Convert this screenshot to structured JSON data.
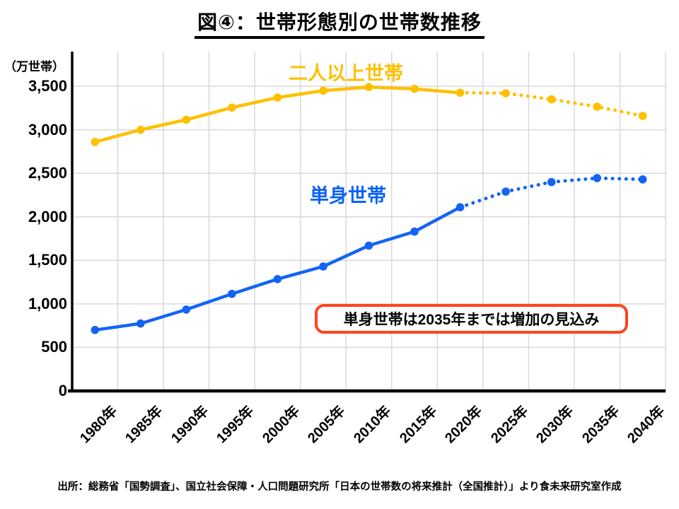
{
  "title": "図④：世帯形態別の世帯数推移",
  "unit_label": "（万世帯）",
  "annotation": {
    "text": "単身世帯は2035年までは増加の見込み",
    "border_color": "#FF4420"
  },
  "source": "出所：総務省「国勢調査」、国立社会保障・人口問題研究所「日本の世帯数の将来推計（全国推計）」より食未来研究室作成",
  "colors": {
    "grid": "#D9D9D9",
    "axis": "#000000",
    "two_plus_line": "#FFC000",
    "two_plus_label": "#FFC000",
    "single_line": "#1464F4",
    "single_label": "#0A62F8"
  },
  "chart_data": {
    "type": "line",
    "categories": [
      "1980年",
      "1985年",
      "1990年",
      "1995年",
      "2000年",
      "2005年",
      "2010年",
      "2015年",
      "2020年",
      "2025年",
      "2030年",
      "2035年",
      "2040年"
    ],
    "series": [
      {
        "key": "two-plus-households",
        "name": "二人以上世帯",
        "color": "#FFC000",
        "label_color": "#FFC000",
        "values": [
          2860,
          3000,
          3115,
          3255,
          3370,
          3450,
          3490,
          3470,
          3425,
          3420,
          3350,
          3265,
          3160
        ],
        "solid_until_index": 8
      },
      {
        "key": "single-households",
        "name": "単身世帯",
        "color": "#1464F4",
        "label_color": "#0A62F8",
        "values": [
          700,
          775,
          935,
          1115,
          1285,
          1430,
          1670,
          1830,
          2110,
          2290,
          2400,
          2445,
          2430
        ],
        "solid_until_index": 8
      }
    ],
    "ylabel": "（万世帯）",
    "yticks": [
      0,
      500,
      1000,
      1500,
      2000,
      2500,
      3000,
      3500
    ],
    "ylim": [
      0,
      3900
    ],
    "grid": true,
    "legend_position": "inline-labels",
    "projection_note": "values after solid_until_index are drawn dotted (forecast)"
  }
}
